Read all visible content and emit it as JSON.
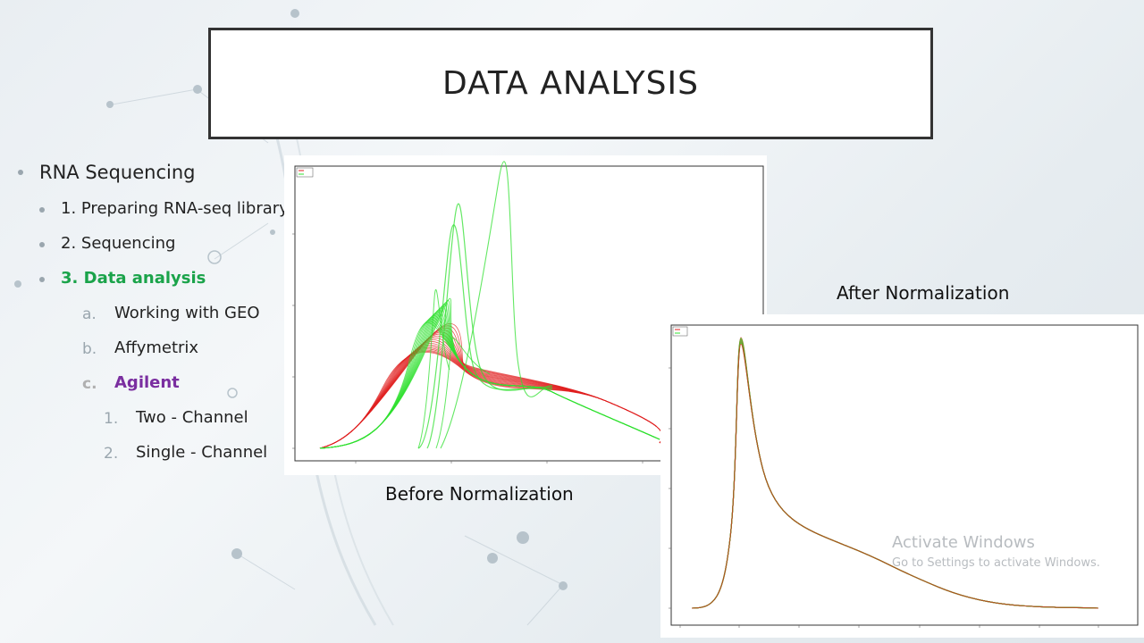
{
  "slide": {
    "title": "DATA ANALYSIS",
    "bullets": {
      "rna": "RNA Sequencing",
      "prep": "1. Preparing RNA-seq library",
      "seq": "2. Sequencing",
      "analysis": "3. Data analysis",
      "geo_num": "a.",
      "geo": "Working with GEO",
      "affy_num": "b.",
      "affy": "Affymetrix",
      "agil_num": "c.",
      "agil": "Agilent",
      "two_num": "1.",
      "two": "Two - Channel",
      "single_num": "2.",
      "single": "Single - Channel"
    },
    "captions": {
      "before": "Before Normalization",
      "after": "After Normalization"
    },
    "colors": {
      "green": "#1aa34a",
      "purple": "#7a2ea0",
      "red_curve": "#e02020",
      "green_curve": "#30e030"
    }
  },
  "watermark": {
    "line1": "Activate Windows",
    "line2": "Go to Settings to activate Windows."
  }
}
